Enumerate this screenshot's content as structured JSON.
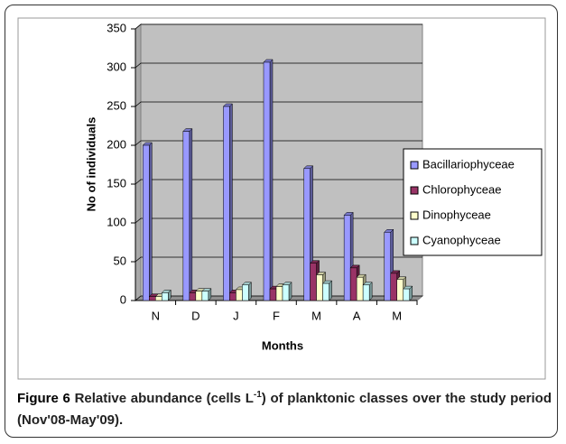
{
  "chart_data": {
    "type": "bar",
    "xlabel": "Months",
    "ylabel": "No of individuals",
    "categories": [
      "N",
      "D",
      "J",
      "F",
      "M",
      "A",
      "M"
    ],
    "series": [
      {
        "name": "Bacillariophyceae",
        "color": "#9999ff",
        "values": [
          200,
          218,
          250,
          307,
          170,
          110,
          88
        ]
      },
      {
        "name": "Chlorophyceae",
        "color": "#993366",
        "values": [
          5,
          10,
          10,
          15,
          48,
          42,
          35
        ]
      },
      {
        "name": "Dinophyceae",
        "color": "#ffffcc",
        "values": [
          5,
          12,
          14,
          18,
          33,
          30,
          27
        ]
      },
      {
        "name": "Cyanophyceae",
        "color": "#ccffff",
        "values": [
          10,
          12,
          20,
          20,
          22,
          20,
          15
        ]
      }
    ],
    "ylim": [
      0,
      350
    ],
    "yticks": [
      0,
      50,
      100,
      150,
      200,
      250,
      300,
      350
    ],
    "grid": true,
    "legend": "right"
  },
  "caption": {
    "label": "Figure 6",
    "text_before": " Relative abundance (cells L",
    "superscript": "-1",
    "text_after": ") of planktonic classes over the study period (Nov'08-May'09)."
  }
}
